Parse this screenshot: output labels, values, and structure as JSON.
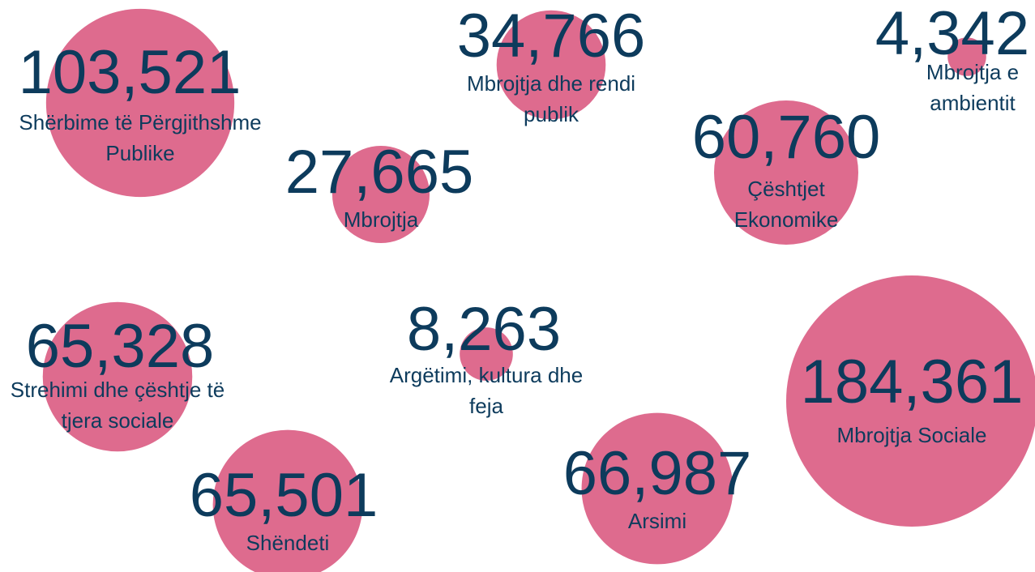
{
  "chart_data": {
    "type": "bubble",
    "color": "#de6b8e",
    "categories": [
      "Shërbime të Përgjithshme Publike",
      "Mbrojtja dhe rendi publik",
      "Mbrojtja e ambientit",
      "Mbrojtja",
      "Çështjet Ekonomike",
      "Strehimi dhe çështje të tjera sociale",
      "Argëtimi, kultura dhe feja",
      "Mbrojtja Sociale",
      "Shëndeti",
      "Arsimi"
    ],
    "values": [
      103521,
      34766,
      4342,
      27665,
      60760,
      65328,
      8263,
      184361,
      65501,
      66987
    ],
    "value_labels": [
      "103,521",
      "34,766",
      "4,342",
      "27,665",
      "60,760",
      "65,328",
      "8,263",
      "184,361",
      "65,501",
      "66,987"
    ]
  }
}
